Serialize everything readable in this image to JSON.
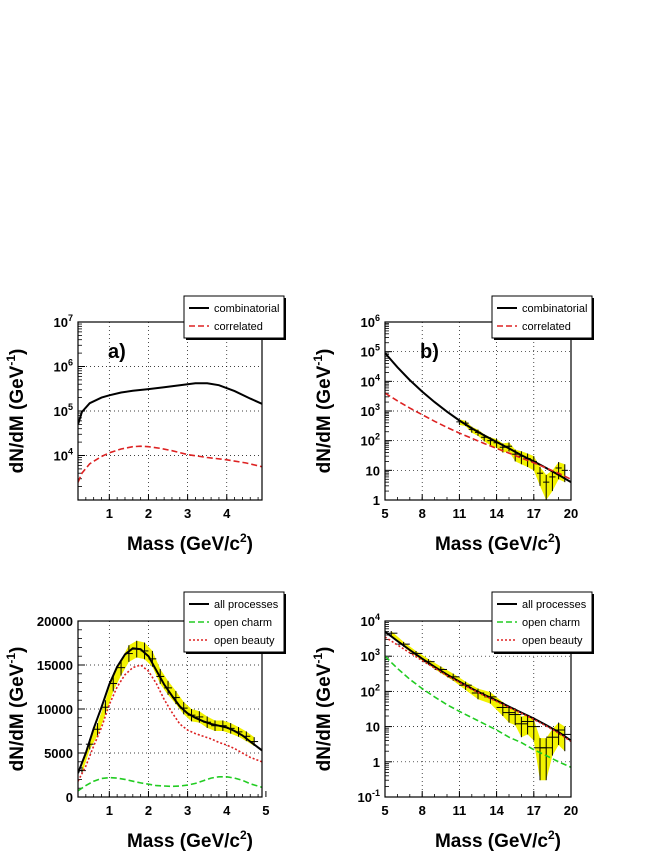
{
  "chart_data": [
    {
      "id": "a",
      "type": "line",
      "panel_label": "a)",
      "xlabel": "Mass (GeV/c²)",
      "ylabel": "dN/dM (GeV⁻¹)",
      "xlim": [
        0.2,
        4.9
      ],
      "ylim": [
        1000,
        10000000
      ],
      "yscale": "log",
      "grid": true,
      "legend_position": "top-right",
      "xticks": [
        "1",
        "2",
        "3",
        "4"
      ],
      "yticks": [
        "10^4",
        "10^5",
        "10^6",
        "10^7"
      ],
      "series": [
        {
          "name": "combinatorial",
          "style": "solid",
          "color": "#000000",
          "x": [
            0.2,
            0.3,
            0.5,
            0.8,
            1.0,
            1.3,
            1.6,
            2.0,
            2.4,
            2.8,
            3.2,
            3.5,
            3.8,
            4.2,
            4.6,
            4.9
          ],
          "y": [
            50000,
            95000,
            150000,
            200000,
            225000,
            260000,
            285000,
            310000,
            340000,
            380000,
            420000,
            420000,
            380000,
            280000,
            190000,
            145000
          ]
        },
        {
          "name": "correlated",
          "style": "dashed",
          "color": "#dd2222",
          "x": [
            0.2,
            0.3,
            0.5,
            0.8,
            1.0,
            1.3,
            1.6,
            1.8,
            2.0,
            2.3,
            2.6,
            3.0,
            3.5,
            4.0,
            4.5,
            4.9
          ],
          "y": [
            2500,
            4000,
            6500,
            9500,
            11500,
            14000,
            15800,
            16200,
            15800,
            14500,
            12800,
            10500,
            9000,
            8000,
            6800,
            5600
          ]
        }
      ]
    },
    {
      "id": "b",
      "type": "line",
      "panel_label": "b)",
      "xlabel": "Mass (GeV/c²)",
      "ylabel": "dN/dM (GeV⁻¹)",
      "xlim": [
        5,
        20
      ],
      "ylim": [
        1,
        1000000
      ],
      "yscale": "log",
      "grid": true,
      "legend_position": "top-right",
      "xticks": [
        "5",
        "8",
        "11",
        "14",
        "17",
        "20"
      ],
      "yticks": [
        "1",
        "10",
        "10^2",
        "10^3",
        "10^4",
        "10^5",
        "10^6"
      ],
      "series": [
        {
          "name": "combinatorial",
          "style": "solid",
          "color": "#000000",
          "x": [
            5,
            6,
            7,
            8,
            9,
            10,
            11,
            12,
            13,
            14,
            15,
            16,
            17,
            18,
            19,
            20
          ],
          "y": [
            90000,
            30000,
            11000,
            4500,
            2000,
            950,
            480,
            260,
            150,
            90,
            55,
            32,
            20,
            12,
            7,
            4
          ]
        },
        {
          "name": "correlated",
          "style": "dashed",
          "color": "#dd2222",
          "x": [
            5,
            6,
            7,
            8,
            9,
            10,
            11,
            12,
            13,
            14,
            15,
            16,
            17,
            18,
            19,
            20
          ],
          "y": [
            4000,
            2200,
            1250,
            750,
            450,
            280,
            180,
            120,
            80,
            55,
            38,
            26,
            18,
            12,
            8,
            5
          ]
        }
      ],
      "data_points": {
        "x": [
          11,
          11.5,
          12,
          12.5,
          13,
          13.5,
          14,
          14.5,
          15,
          15.5,
          16,
          16.5,
          17,
          17.5,
          18,
          18.5,
          19,
          19.5
        ],
        "y": [
          430,
          390,
          240,
          190,
          130,
          100,
          85,
          60,
          65,
          35,
          30,
          25,
          20,
          8,
          4,
          6,
          12,
          10
        ],
        "err": [
          90,
          80,
          55,
          45,
          35,
          30,
          28,
          20,
          22,
          15,
          14,
          12,
          10,
          5,
          3,
          4,
          7,
          6
        ]
      }
    },
    {
      "id": "c",
      "type": "line",
      "panel_label": "",
      "xlabel": "Mass (GeV/c²)",
      "ylabel": "dN/dM (GeV⁻¹)",
      "xlim": [
        0.2,
        4.9
      ],
      "ylim": [
        0,
        20000
      ],
      "yscale": "linear",
      "grid": true,
      "legend_position": "top-right",
      "xticks": [
        "1",
        "2",
        "3",
        "4",
        "5"
      ],
      "yticks": [
        "0",
        "5000",
        "10000",
        "15000",
        "20000"
      ],
      "series": [
        {
          "name": "all processes",
          "style": "solid",
          "color": "#000000",
          "x": [
            0.2,
            0.4,
            0.6,
            0.8,
            1.0,
            1.2,
            1.4,
            1.6,
            1.8,
            2.0,
            2.2,
            2.4,
            2.6,
            2.8,
            3.0,
            3.2,
            3.4,
            3.6,
            3.8,
            4.0,
            4.2,
            4.4,
            4.6,
            4.9
          ],
          "y": [
            2700,
            5000,
            7800,
            10200,
            12800,
            14800,
            16200,
            16900,
            16800,
            16000,
            14400,
            12800,
            11500,
            10300,
            9500,
            9000,
            8600,
            8300,
            8100,
            7900,
            7500,
            7000,
            6300,
            5300
          ]
        },
        {
          "name": "open charm",
          "style": "dashed",
          "color": "#22cc22",
          "x": [
            0.2,
            0.4,
            0.6,
            0.8,
            1.0,
            1.2,
            1.4,
            1.6,
            1.8,
            2.0,
            2.2,
            2.4,
            2.6,
            2.8,
            3.0,
            3.2,
            3.4,
            3.6,
            3.8,
            4.0,
            4.2,
            4.4,
            4.6,
            4.9
          ],
          "y": [
            700,
            1300,
            1800,
            2100,
            2200,
            2150,
            2000,
            1800,
            1600,
            1450,
            1300,
            1250,
            1200,
            1250,
            1350,
            1550,
            1850,
            2150,
            2300,
            2300,
            2150,
            1900,
            1500,
            1100
          ]
        },
        {
          "name": "open beauty",
          "style": "dotted",
          "color": "#dd2222",
          "x": [
            0.2,
            0.4,
            0.6,
            0.8,
            1.0,
            1.2,
            1.4,
            1.6,
            1.8,
            2.0,
            2.2,
            2.4,
            2.6,
            2.8,
            3.0,
            3.2,
            3.4,
            3.6,
            3.8,
            4.0,
            4.2,
            4.4,
            4.6,
            4.9
          ],
          "y": [
            1800,
            3500,
            5800,
            7900,
            10500,
            12500,
            13900,
            14700,
            15000,
            14300,
            12900,
            11100,
            9600,
            8300,
            7600,
            7200,
            6900,
            6600,
            6200,
            5900,
            5500,
            5000,
            4500,
            4000
          ]
        }
      ],
      "data_points": {
        "x": [
          0.3,
          0.5,
          0.7,
          0.9,
          1.1,
          1.3,
          1.5,
          1.7,
          1.9,
          2.1,
          2.3,
          2.5,
          2.7,
          2.9,
          3.1,
          3.3,
          3.5,
          3.7,
          3.9,
          4.1,
          4.3,
          4.5,
          4.7
        ],
        "y": [
          3000,
          6000,
          7700,
          10200,
          12900,
          14700,
          16300,
          16800,
          16600,
          15700,
          13700,
          12400,
          11300,
          10100,
          9300,
          9100,
          8500,
          8100,
          8100,
          7800,
          7400,
          6900,
          6300
        ],
        "err": [
          400,
          600,
          700,
          800,
          900,
          900,
          950,
          950,
          950,
          900,
          850,
          800,
          750,
          700,
          700,
          650,
          650,
          600,
          600,
          600,
          550,
          550,
          500
        ]
      }
    },
    {
      "id": "d",
      "type": "line",
      "panel_label": "",
      "xlabel": "Mass (GeV/c²)",
      "ylabel": "dN/dM (GeV⁻¹)",
      "xlim": [
        5,
        20
      ],
      "ylim": [
        0.1,
        10000
      ],
      "yscale": "log",
      "grid": true,
      "legend_position": "top-right",
      "xticks": [
        "5",
        "8",
        "11",
        "14",
        "17",
        "20"
      ],
      "yticks": [
        "10^-1",
        "1",
        "10",
        "10^2",
        "10^3",
        "10^4"
      ],
      "series": [
        {
          "name": "all processes",
          "style": "solid",
          "color": "#000000",
          "x": [
            5,
            6,
            7,
            8,
            9,
            10,
            11,
            12,
            13,
            14,
            15,
            16,
            17,
            18,
            19,
            20
          ],
          "y": [
            5000,
            2700,
            1500,
            850,
            500,
            300,
            190,
            120,
            80,
            55,
            37,
            25,
            17,
            11,
            7,
            4
          ]
        },
        {
          "name": "open charm",
          "style": "dashed",
          "color": "#22cc22",
          "x": [
            5,
            6,
            7,
            8,
            9,
            10,
            11,
            12,
            13,
            14,
            15,
            16,
            17,
            18,
            19,
            20
          ],
          "y": [
            1000,
            450,
            220,
            120,
            70,
            42,
            27,
            18,
            12,
            8,
            5,
            3.5,
            2.2,
            1.5,
            1.0,
            0.7
          ]
        },
        {
          "name": "open beauty",
          "style": "dotted",
          "color": "#dd2222",
          "x": [
            5,
            6,
            7,
            8,
            9,
            10,
            11,
            12,
            13,
            14,
            15,
            16,
            17,
            18,
            19,
            20
          ],
          "y": [
            3500,
            2100,
            1250,
            750,
            460,
            280,
            180,
            115,
            76,
            52,
            35,
            24,
            16,
            10.5,
            6.5,
            3.8
          ]
        }
      ],
      "data_points": {
        "x": [
          5.5,
          6.5,
          7.5,
          8.5,
          9.5,
          10.5,
          11.5,
          12.5,
          13.5,
          14.5,
          15,
          15.5,
          16,
          16.5,
          17,
          17.5,
          18,
          18.5,
          19,
          19.5
        ],
        "y": [
          4500,
          2200,
          1200,
          700,
          420,
          260,
          150,
          90,
          70,
          35,
          25,
          22,
          12,
          14,
          10,
          2.5,
          2.5,
          5,
          8,
          6
        ],
        "err": [
          700,
          350,
          200,
          130,
          90,
          60,
          40,
          30,
          25,
          15,
          12,
          11,
          7,
          8,
          6,
          2.2,
          2.2,
          3.5,
          5,
          4
        ]
      }
    }
  ]
}
